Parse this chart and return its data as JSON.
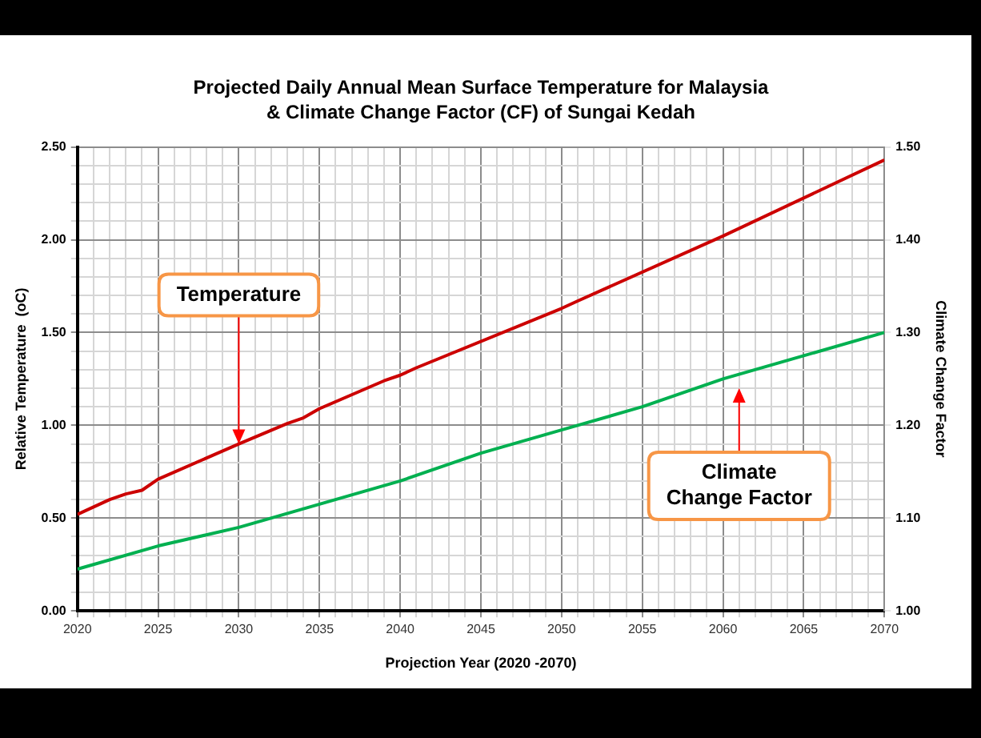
{
  "chart_data": {
    "type": "line",
    "title": "Projected Daily Annual Mean Surface Temperature for Malaysia",
    "subtitle": "& Climate Change Factor (CF) of Sungai Kedah",
    "xlabel": "Projection Year (2020 -2070)",
    "ylabel": "Relative Temperature  (oC)",
    "y2label": "Climate Change Factor",
    "xlim": [
      2020,
      2070
    ],
    "xticks": [
      2020,
      {
        "value": 2021,
        "label": null
      },
      {
        "value": 2022,
        "label": null
      },
      {
        "value": 2023,
        "label": null
      },
      {
        "value": 2024,
        "label": null
      },
      2025,
      {
        "value": 2026,
        "label": null
      },
      {
        "value": 2027,
        "label": null
      },
      {
        "value": 2028,
        "label": null
      },
      {
        "value": 2029,
        "label": null
      },
      2030,
      {
        "value": 2031,
        "label": null
      },
      {
        "value": 2032,
        "label": null
      },
      {
        "value": 2033,
        "label": null
      },
      {
        "value": 2034,
        "label": null
      },
      2035,
      {
        "value": 2036,
        "label": null
      },
      {
        "value": 2037,
        "label": null
      },
      {
        "value": 2038,
        "label": null
      },
      {
        "value": 2039,
        "label": null
      },
      2040,
      {
        "value": 2041,
        "label": null
      },
      {
        "value": 2042,
        "label": null
      },
      {
        "value": 2043,
        "label": null
      },
      {
        "value": 2044,
        "label": null
      },
      2045,
      {
        "value": 2046,
        "label": null
      },
      {
        "value": 2047,
        "label": null
      },
      {
        "value": 2048,
        "label": null
      },
      {
        "value": 2049,
        "label": null
      },
      2050,
      {
        "value": 2051,
        "label": null
      },
      {
        "value": 2052,
        "label": null
      },
      {
        "value": 2053,
        "label": null
      },
      {
        "value": 2054,
        "label": null
      },
      2055,
      {
        "value": 2056,
        "label": null
      },
      {
        "value": 2057,
        "label": null
      },
      {
        "value": 2058,
        "label": null
      },
      {
        "value": 2059,
        "label": null
      },
      2060,
      {
        "value": 2061,
        "label": null
      },
      {
        "value": 2062,
        "label": null
      },
      {
        "value": 2063,
        "label": null
      },
      {
        "value": 2064,
        "label": null
      },
      2065,
      {
        "value": 2066,
        "label": null
      },
      {
        "value": 2067,
        "label": null
      },
      {
        "value": 2068,
        "label": null
      },
      {
        "value": 2069,
        "label": null
      },
      2070
    ],
    "ylim": [
      0,
      2.5
    ],
    "yticks": [
      {
        "value": 0,
        "label": "0.00"
      },
      {
        "value": 0.1,
        "label": null
      },
      {
        "value": 0.2,
        "label": null
      },
      {
        "value": 0.3,
        "label": null
      },
      {
        "value": 0.4,
        "label": null
      },
      {
        "value": 0.5,
        "label": "0.50"
      },
      {
        "value": 0.6,
        "label": null
      },
      {
        "value": 0.7,
        "label": null
      },
      {
        "value": 0.8,
        "label": null
      },
      {
        "value": 0.9,
        "label": null
      },
      {
        "value": 1,
        "label": "1.00"
      },
      {
        "value": 1.1,
        "label": null
      },
      {
        "value": 1.2,
        "label": null
      },
      {
        "value": 1.3,
        "label": null
      },
      {
        "value": 1.4,
        "label": null
      },
      {
        "value": 1.5,
        "label": "1.50"
      },
      {
        "value": 1.6,
        "label": null
      },
      {
        "value": 1.7,
        "label": null
      },
      {
        "value": 1.8,
        "label": null
      },
      {
        "value": 1.9,
        "label": null
      },
      {
        "value": 2,
        "label": "2.00"
      },
      {
        "value": 2.1,
        "label": null
      },
      {
        "value": 2.2,
        "label": null
      },
      {
        "value": 2.3,
        "label": null
      },
      {
        "value": 2.4,
        "label": null
      },
      {
        "value": 2.5,
        "label": "2.50"
      }
    ],
    "y2lim": [
      1,
      1.5
    ],
    "y2ticks": [
      {
        "value": 1,
        "label": "1.00"
      },
      {
        "value": 1.1,
        "label": "1.10"
      },
      {
        "value": 1.2,
        "label": "1.20"
      },
      {
        "value": 1.3,
        "label": "1.30"
      },
      {
        "value": 1.4,
        "label": "1.40"
      },
      {
        "value": 1.5,
        "label": "1.50"
      }
    ],
    "grid": true,
    "legend": false,
    "marker": "none",
    "line_style": "solid",
    "series": [
      {
        "color": "#cc0000",
        "x": [
          2020,
          2021,
          2022,
          2023,
          2024,
          2025,
          2030,
          2033,
          2034,
          2035,
          2039,
          2040,
          2041,
          2050,
          2051,
          2060,
          2070
        ],
        "values": [
          0.52,
          0.56,
          0.6,
          0.63,
          0.65,
          0.71,
          0.9,
          1.01,
          1.04,
          1.09,
          1.24,
          1.27,
          1.31,
          1.63,
          1.67,
          2.02,
          2.43
        ]
      },
      {
        "color": "#00b050",
        "axis": "y2",
        "x": [
          2020,
          2025,
          2030,
          2035,
          2040,
          2045,
          2050,
          2055,
          2060,
          2065,
          2070
        ],
        "values": [
          1.045,
          1.07,
          1.09,
          1.115,
          1.14,
          1.17,
          1.195,
          1.22,
          1.25,
          1.275,
          1.3
        ]
      }
    ],
    "annotations": [
      {
        "text": "Temperature",
        "x": 2030,
        "y": 0.9
      },
      "Climate Change Factor"
    ]
  }
}
